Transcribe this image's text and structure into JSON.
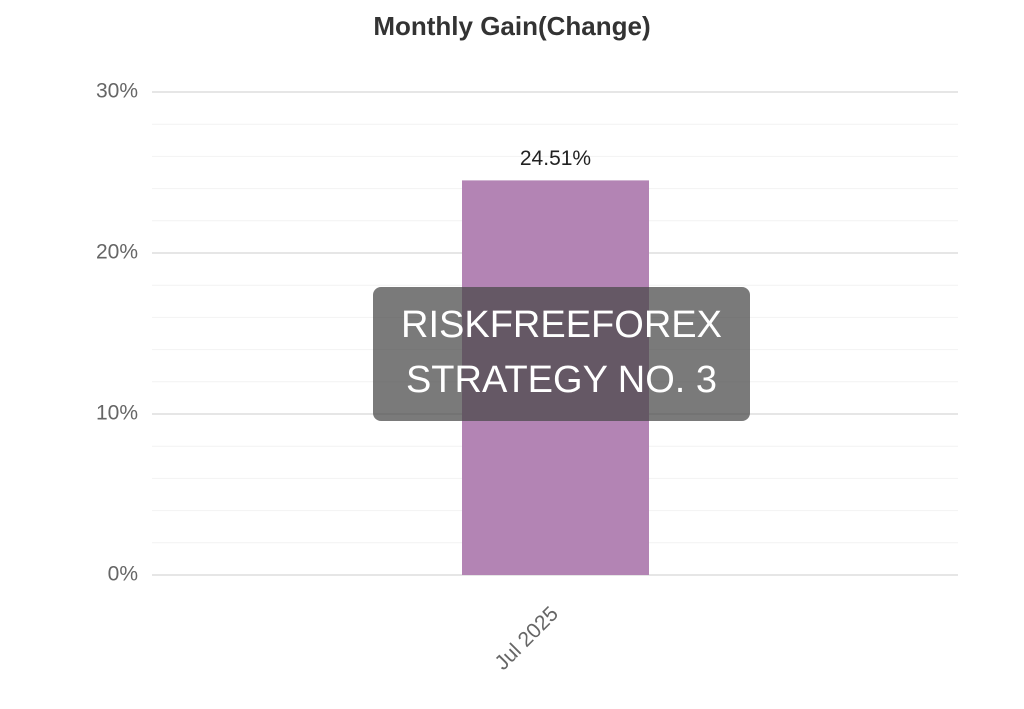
{
  "chart_data": {
    "type": "bar",
    "title": "Monthly Gain(Change)",
    "categories": [
      "Jul 2025"
    ],
    "values": [
      24.51
    ],
    "value_labels": [
      "24.51%"
    ],
    "color": "#b384b4",
    "ylim": [
      0,
      30
    ],
    "yticks": [
      {
        "value": 0,
        "label": "0%"
      },
      {
        "value": 10,
        "label": "10%"
      },
      {
        "value": 20,
        "label": "20%"
      },
      {
        "value": 30,
        "label": "30%"
      }
    ],
    "minor_yticks": [
      2,
      4,
      6,
      8,
      12,
      14,
      16,
      18,
      22,
      24,
      26,
      28
    ],
    "grid": true,
    "watermark": [
      "RISKFREEFOREX",
      "STRATEGY NO. 3"
    ]
  }
}
